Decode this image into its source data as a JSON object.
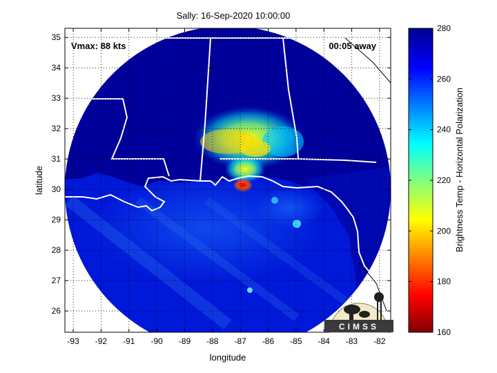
{
  "title": "Sally: 16-Sep-2020 10:00:00",
  "vmax_label": "Vmax: 88 kts",
  "time_label": "00:05 away",
  "xlabel": "longitude",
  "ylabel": "latitude",
  "colorbar_label": "Brightness Temp - Horizontal Polarization",
  "logo_text": "CIMSS",
  "x_ticks": [
    "-93",
    "-92",
    "-91",
    "-90",
    "-89",
    "-88",
    "-87",
    "-86",
    "-85",
    "-84",
    "-83",
    "-82"
  ],
  "y_ticks": [
    "35",
    "34",
    "33",
    "32",
    "31",
    "30",
    "29",
    "28",
    "27",
    "26"
  ],
  "colorbar_ticks": [
    "280",
    "260",
    "240",
    "220",
    "200",
    "180",
    "160"
  ],
  "chart_data": {
    "type": "heatmap",
    "x_range": [
      -93.3,
      -81.6
    ],
    "y_range": [
      25.3,
      35.3
    ],
    "colorbar_range": [
      160,
      280
    ],
    "colormap": "jet",
    "background_color": "#00008f",
    "storm_center": [
      -87.0,
      30.3
    ],
    "coldest_core_value": 180
  }
}
